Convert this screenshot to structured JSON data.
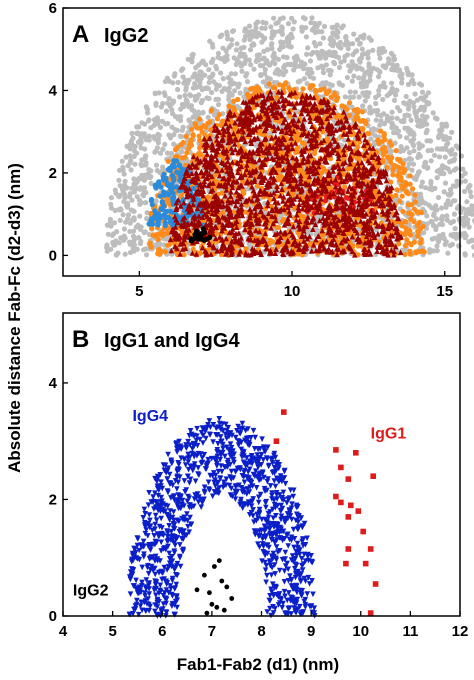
{
  "figure": {
    "ylabel": "Absolute distance Fab-Fc (d2-d3) (nm)",
    "xlabel": "Fab1-Fab2 (d1) (nm)"
  },
  "chart_data": [
    {
      "type": "scatter",
      "panel_letter": "A",
      "panel_title": "IgG2",
      "xlim": [
        2.5,
        15.5
      ],
      "ylim": [
        -0.5,
        6.0
      ],
      "xticks": [
        5,
        10,
        15
      ],
      "yticks": [
        0,
        2,
        4,
        6
      ],
      "series": [
        {
          "color": "#bdbdbd",
          "marker": "circle",
          "center": [
            10.0,
            0
          ],
          "rx": 6.1,
          "ry": 5.8,
          "count": 2600
        },
        {
          "color": "#ff8c1a",
          "marker": "circle",
          "center": [
            9.8,
            0
          ],
          "rx": 4.6,
          "ry": 4.2,
          "count": 1400
        },
        {
          "color": "#2a8bdc",
          "marker": "circle",
          "center": [
            6.2,
            0.7
          ],
          "rx": 0.9,
          "ry": 1.6,
          "count": 170
        },
        {
          "color": "#e81b1b",
          "marker": "circle",
          "center": [
            11.5,
            0.9
          ],
          "rx": 1.2,
          "ry": 1.1,
          "count": 60
        },
        {
          "color": "#9b0000",
          "marker": "triangle",
          "center": [
            9.8,
            0
          ],
          "rx": 3.8,
          "ry": 4.0,
          "count": 1700
        },
        {
          "color": "#000000",
          "marker": "circle",
          "center": [
            7.0,
            0.35
          ],
          "rx": 0.35,
          "ry": 0.35,
          "count": 18
        }
      ]
    },
    {
      "type": "scatter",
      "panel_letter": "B",
      "panel_title": "IgG1 and IgG4",
      "xlim": [
        4,
        12
      ],
      "ylim": [
        0,
        5.2
      ],
      "xticks": [
        4,
        5,
        6,
        7,
        8,
        9,
        10,
        11,
        12
      ],
      "yticks": [
        0,
        2,
        4
      ],
      "series": [
        {
          "name": "IgG4",
          "color": "#0a1fc8",
          "marker": "triangle-down",
          "arch_center": [
            7.2,
            0
          ],
          "r_outer": [
            1.9,
            3.4
          ],
          "r_inner": [
            0.9,
            2.1
          ],
          "count": 1100
        },
        {
          "name": "IgG1",
          "color": "#e01b1b",
          "marker": "square",
          "points": [
            [
              8.45,
              3.5
            ],
            [
              8.3,
              3.0
            ],
            [
              9.5,
              2.85
            ],
            [
              9.9,
              2.8
            ],
            [
              9.6,
              2.55
            ],
            [
              10.25,
              2.4
            ],
            [
              9.75,
              2.35
            ],
            [
              9.5,
              2.05
            ],
            [
              9.6,
              1.95
            ],
            [
              9.8,
              1.9
            ],
            [
              9.95,
              1.8
            ],
            [
              9.75,
              1.7
            ],
            [
              10.05,
              1.45
            ],
            [
              9.75,
              1.15
            ],
            [
              10.2,
              1.15
            ],
            [
              9.7,
              0.9
            ],
            [
              10.1,
              0.9
            ],
            [
              10.3,
              0.55
            ],
            [
              10.2,
              0.05
            ]
          ]
        },
        {
          "name": "IgG2",
          "color": "#000000",
          "marker": "circle",
          "points": [
            [
              6.7,
              0.45
            ],
            [
              6.85,
              0.7
            ],
            [
              7.0,
              0.2
            ],
            [
              7.05,
              0.85
            ],
            [
              7.15,
              0.95
            ],
            [
              7.2,
              0.6
            ],
            [
              7.3,
              0.5
            ],
            [
              6.95,
              0.4
            ],
            [
              7.1,
              0.15
            ],
            [
              6.9,
              0.05
            ],
            [
              7.4,
              0.3
            ],
            [
              7.25,
              0.1
            ]
          ]
        }
      ],
      "series_labels": [
        {
          "text": "IgG4",
          "x": 5.4,
          "y": 3.35
        },
        {
          "text": "IgG1",
          "x": 10.2,
          "y": 3.05
        },
        {
          "text": "IgG2",
          "x": 4.2,
          "y": 0.35
        }
      ]
    }
  ]
}
